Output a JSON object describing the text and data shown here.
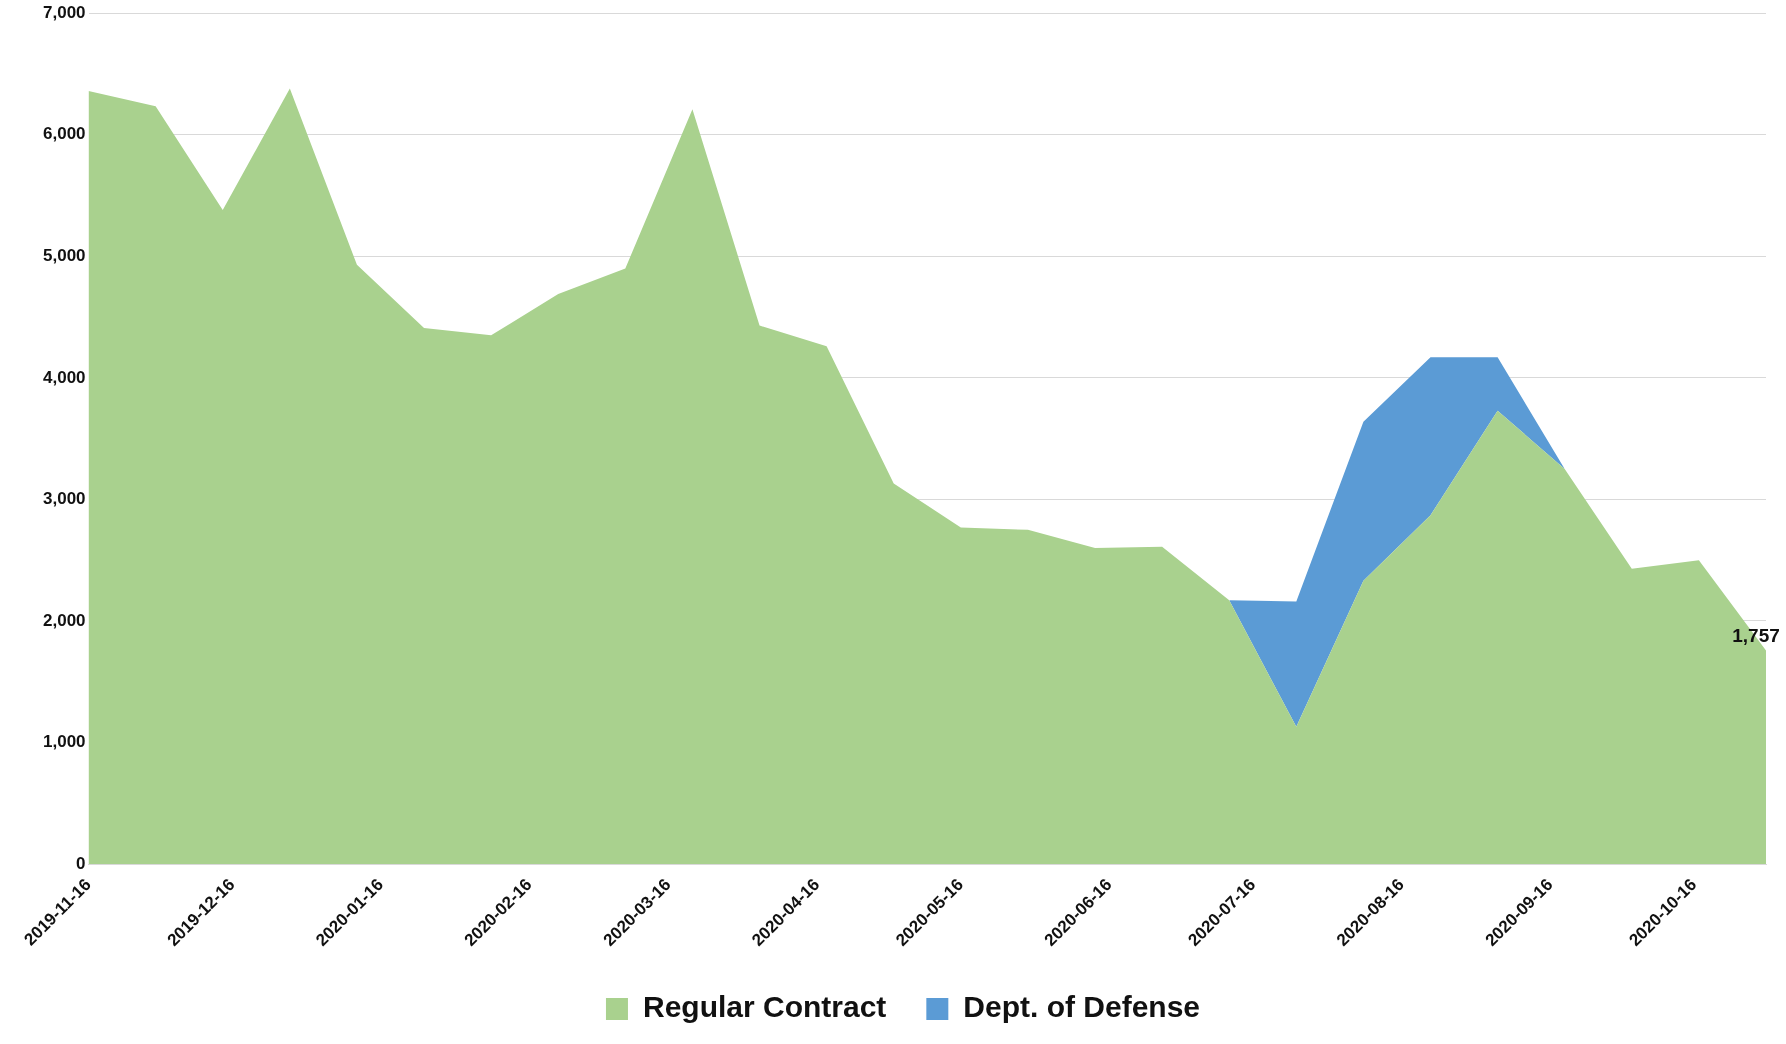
{
  "chart_data": {
    "type": "area",
    "stacked": true,
    "x": [
      "2019-11-16",
      "2019-11-30",
      "2019-12-14",
      "2019-12-28",
      "2020-01-11",
      "2020-01-25",
      "2020-02-08",
      "2020-02-22",
      "2020-03-07",
      "2020-03-21",
      "2020-04-04",
      "2020-04-18",
      "2020-05-02",
      "2020-05-16",
      "2020-05-30",
      "2020-06-13",
      "2020-06-27",
      "2020-07-11",
      "2020-07-25",
      "2020-08-08",
      "2020-08-22",
      "2020-09-05",
      "2020-09-19",
      "2020-10-03",
      "2020-10-17",
      "2020-10-31"
    ],
    "series": [
      {
        "name": "Regular Contract",
        "color": "#a9d18e",
        "values": [
          6360,
          6235,
          5380,
          6380,
          4930,
          4410,
          4350,
          4690,
          4900,
          6210,
          4430,
          4260,
          3130,
          2770,
          2750,
          2600,
          2610,
          2170,
          1130,
          2330,
          2870,
          3730,
          3250,
          2430,
          2500,
          1757
        ],
        "value_labels": [
          null,
          null,
          null,
          null,
          null,
          null,
          null,
          null,
          null,
          null,
          null,
          null,
          null,
          null,
          null,
          null,
          null,
          null,
          null,
          null,
          null,
          null,
          null,
          null,
          null,
          "1,757"
        ]
      },
      {
        "name": "Dept. of Defense",
        "color": "#5b9bd5",
        "values": [
          null,
          null,
          null,
          null,
          null,
          null,
          null,
          null,
          null,
          null,
          null,
          null,
          null,
          null,
          null,
          null,
          null,
          0,
          1030,
          1310,
          1300,
          440,
          0,
          null,
          null,
          null
        ]
      }
    ],
    "xlim": [
      "2019-11-16",
      "2020-10-31"
    ],
    "xticks": [
      "2019-11-16",
      "2019-12-16",
      "2020-01-16",
      "2020-02-16",
      "2020-03-16",
      "2020-04-16",
      "2020-05-16",
      "2020-06-16",
      "2020-07-16",
      "2020-08-16",
      "2020-09-16",
      "2020-10-16"
    ],
    "ylim": [
      0,
      7000
    ],
    "yticks": [
      {
        "value": 0,
        "label": "0"
      },
      {
        "value": 1000,
        "label": "1,000"
      },
      {
        "value": 2000,
        "label": "2,000"
      },
      {
        "value": 3000,
        "label": "3,000"
      },
      {
        "value": 4000,
        "label": "4,000"
      },
      {
        "value": 5000,
        "label": "5,000"
      },
      {
        "value": 6000,
        "label": "6,000"
      },
      {
        "value": 7000,
        "label": "7,000"
      }
    ],
    "grid": "y",
    "legend": "bottom"
  }
}
